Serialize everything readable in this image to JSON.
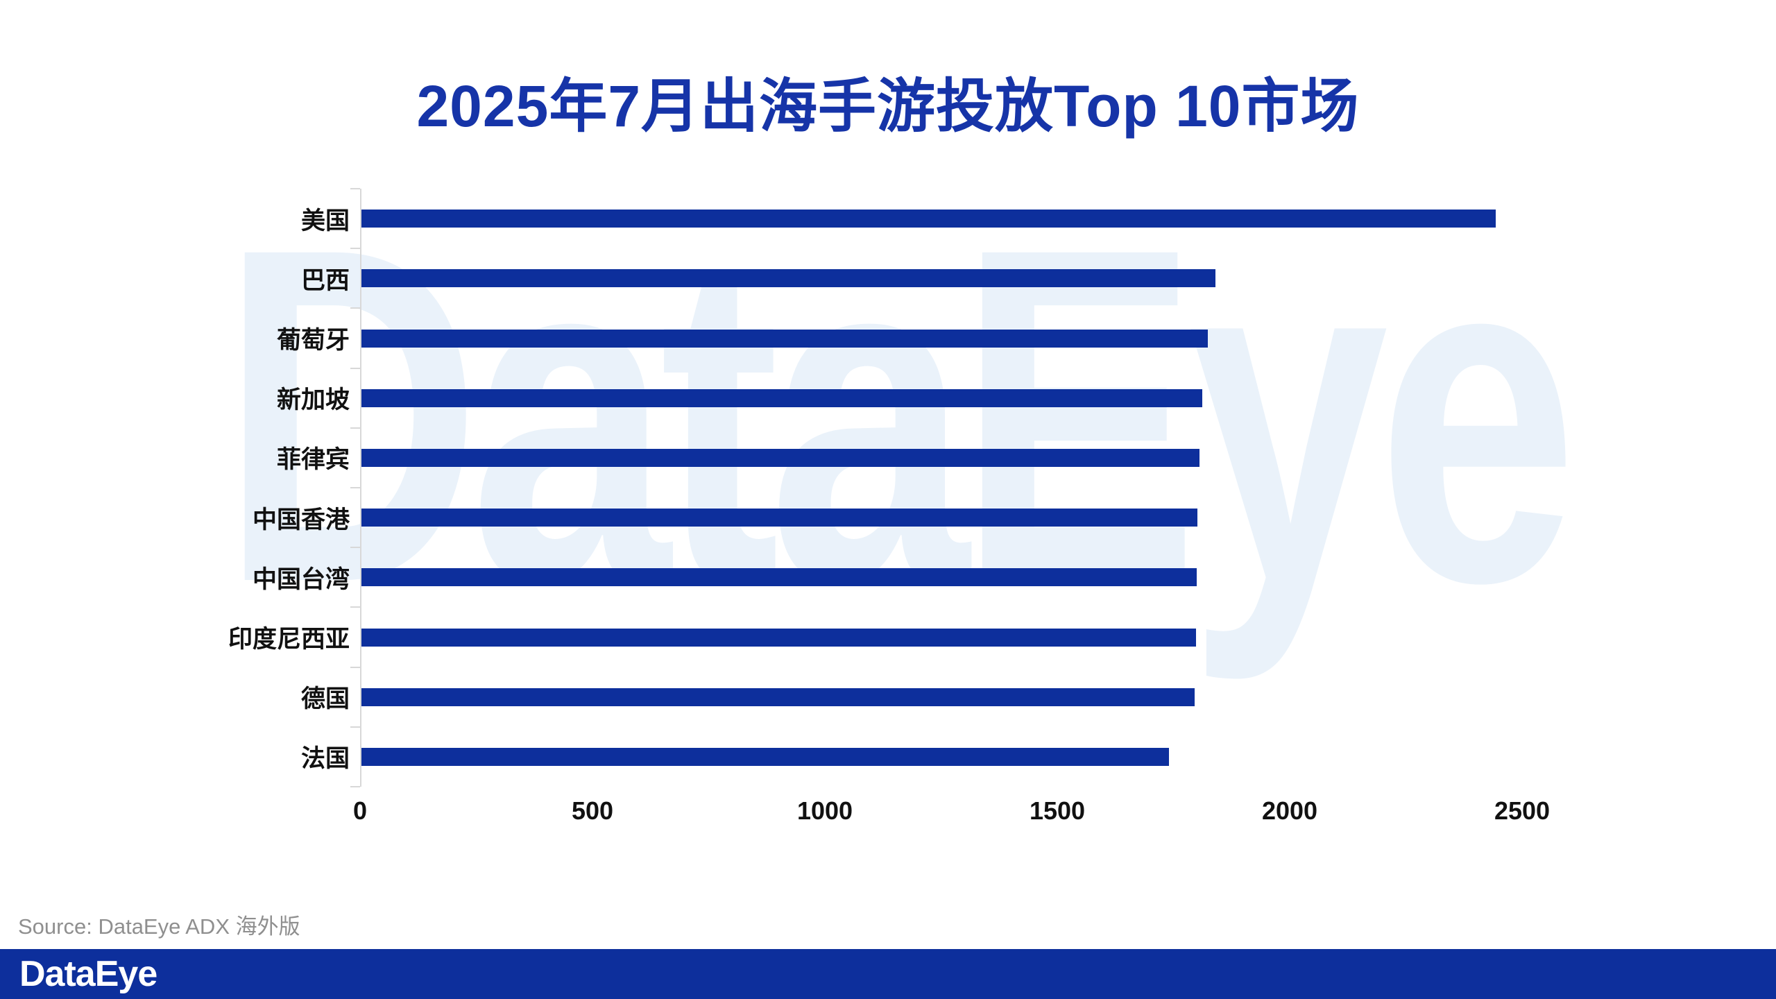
{
  "page": {
    "title": "2025年7月出海手游投放Top 10市场",
    "source_note": "Source: DataEye ADX 海外版",
    "watermark_text": "DataEye",
    "footer": {
      "logo_text": "DataEye"
    }
  },
  "colors": {
    "title_blue": "#1634A8",
    "bar_blue": "#0D2F9C",
    "footer_blue": "#0D2F9C",
    "watermark_blue": "#EAF2FA",
    "axis_gray": "#D8D8D8",
    "category_label_black": "#111111",
    "tick_label_black": "#111111",
    "source_gray": "#8F8F8F",
    "background": "#FFFFFF"
  },
  "chart_data": {
    "type": "bar",
    "orientation": "horizontal",
    "title": "2025年7月出海手游投放Top 10市场",
    "categories": [
      "美国",
      "巴西",
      "葡萄牙",
      "新加坡",
      "菲律宾",
      "中国香港",
      "中国台湾",
      "印度尼西亚",
      "德国",
      "法国"
    ],
    "values": [
      2440,
      1837,
      1821,
      1809,
      1803,
      1799,
      1797,
      1795,
      1793,
      1737
    ],
    "xlabel": "",
    "ylabel": "",
    "xlim": [
      0,
      2500
    ],
    "x_ticks": [
      0,
      500,
      1000,
      1500,
      2000,
      2500
    ],
    "grid": false,
    "legend": null,
    "bar_color": "#0D2F9C"
  }
}
